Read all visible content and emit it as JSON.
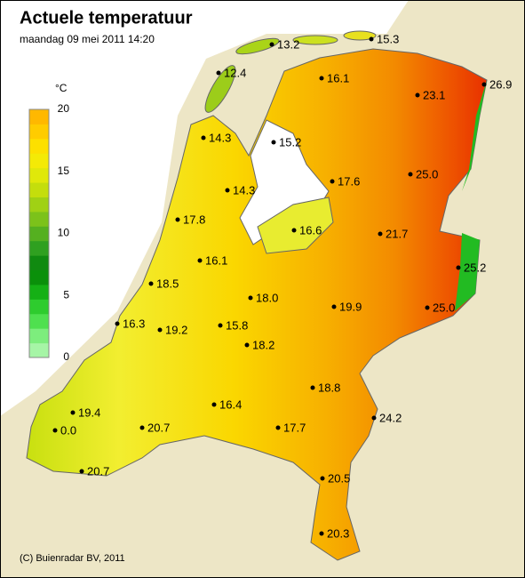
{
  "header": {
    "title": "Actuele temperatuur",
    "subtitle": "maandag 09 mei 2011 14:20"
  },
  "legend": {
    "unit": "°C",
    "ticks": [
      0,
      5,
      10,
      15,
      20
    ],
    "colors": [
      "#a6f5a6",
      "#7ded7d",
      "#4fe04f",
      "#2ecc2e",
      "#15b015",
      "#0a900a",
      "#108a10",
      "#2fa020",
      "#55b020",
      "#7cc21a",
      "#a0d114",
      "#c4de0c",
      "#e0e80a",
      "#f4ea06",
      "#fde000",
      "#ffcc00",
      "#ffb800"
    ]
  },
  "stations": [
    "13.2",
    "15.3",
    "12.4",
    "16.1",
    "23.1",
    "26.9",
    "14.3",
    "15.2",
    "17.6",
    "25.0",
    "14.3",
    "17.8",
    "16.6",
    "21.7",
    "16.1",
    "25.2",
    "18.5",
    "18.0",
    "19.9",
    "25.0",
    "16.3",
    "19.2",
    "15.8",
    "18.2",
    "18.8",
    "19.4",
    "16.4",
    "24.2",
    "0.0",
    "20.7",
    "17.7",
    "20.7",
    "20.5",
    "20.3"
  ],
  "footer": {
    "copyright": "(C) Buienradar BV, 2011"
  }
}
